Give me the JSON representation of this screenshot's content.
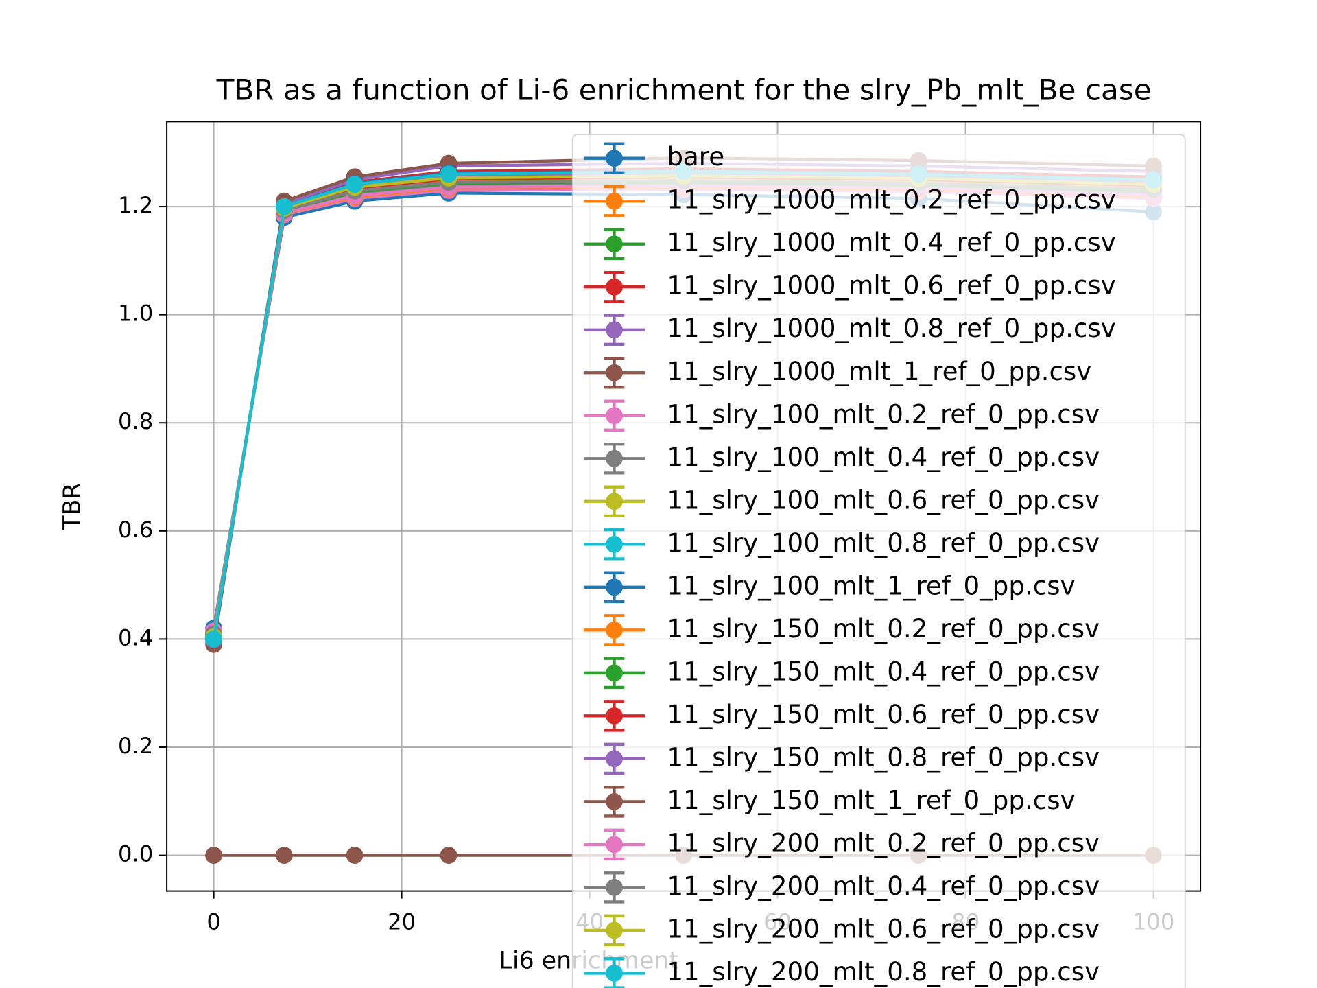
{
  "chart_data": {
    "type": "line",
    "title": "TBR as a function of Li-6 enrichment for the slry_Pb_mlt_Be case",
    "xlabel": "Li6 enrichment",
    "ylabel": "TBR",
    "x": [
      0,
      7.5,
      15,
      25,
      50,
      75,
      100
    ],
    "xlim": [
      -5,
      105
    ],
    "ylim": [
      -0.066,
      1.357
    ],
    "xticks": [
      0,
      20,
      40,
      60,
      80,
      100
    ],
    "yticks": [
      {
        "value": 0,
        "label": "0.0"
      },
      0.2,
      0.4,
      0.6,
      0.8,
      {
        "value": 1,
        "label": "1.0"
      },
      1.2
    ],
    "grid": true,
    "legend": "upper right",
    "series": [
      {
        "name": "bare",
        "color": "#1f77b4",
        "values": [
          0.42,
          1.18,
          1.21,
          1.225,
          1.222,
          1.215,
          1.19
        ]
      },
      {
        "name": "11_slry_1000_mlt_0.2_ref_0_pp.csv",
        "color": "#ff7f0e",
        "values": [
          0.41,
          1.19,
          1.225,
          1.24,
          1.245,
          1.24,
          1.23
        ]
      },
      {
        "name": "11_slry_1000_mlt_0.4_ref_0_pp.csv",
        "color": "#2ca02c",
        "values": [
          0.405,
          1.195,
          1.235,
          1.255,
          1.26,
          1.255,
          1.245
        ]
      },
      {
        "name": "11_slry_1000_mlt_0.6_ref_0_pp.csv",
        "color": "#d62728",
        "values": [
          0.4,
          1.2,
          1.245,
          1.265,
          1.27,
          1.265,
          1.255
        ]
      },
      {
        "name": "11_slry_1000_mlt_0.8_ref_0_pp.csv",
        "color": "#9467bd",
        "values": [
          0.395,
          1.205,
          1.25,
          1.275,
          1.28,
          1.275,
          1.265
        ]
      },
      {
        "name": "11_slry_1000_mlt_1_ref_0_pp.csv",
        "color": "#8c564b",
        "values": [
          0.39,
          1.21,
          1.255,
          1.28,
          1.29,
          1.285,
          1.275
        ]
      },
      {
        "name": "11_slry_100_mlt_0.2_ref_0_pp.csv",
        "color": "#e377c2",
        "values": [
          0.415,
          1.185,
          1.215,
          1.23,
          1.232,
          1.228,
          1.215
        ]
      },
      {
        "name": "11_slry_100_mlt_0.4_ref_0_pp.csv",
        "color": "#7f7f7f",
        "values": [
          0.41,
          1.19,
          1.225,
          1.24,
          1.243,
          1.238,
          1.226
        ]
      },
      {
        "name": "11_slry_100_mlt_0.6_ref_0_pp.csv",
        "color": "#bcbd22",
        "values": [
          0.405,
          1.195,
          1.232,
          1.248,
          1.252,
          1.247,
          1.236
        ]
      },
      {
        "name": "11_slry_100_mlt_0.8_ref_0_pp.csv",
        "color": "#17becf",
        "values": [
          0.4,
          1.198,
          1.238,
          1.256,
          1.26,
          1.255,
          1.244
        ]
      },
      {
        "name": "11_slry_100_mlt_1_ref_0_pp.csv",
        "color": "#1f77b4",
        "values": [
          0.405,
          1.2,
          1.243,
          1.262,
          1.266,
          1.261,
          1.25
        ]
      },
      {
        "name": "11_slry_150_mlt_0.2_ref_0_pp.csv",
        "color": "#ff7f0e",
        "values": [
          0.413,
          1.187,
          1.218,
          1.234,
          1.236,
          1.232,
          1.219
        ]
      },
      {
        "name": "11_slry_150_mlt_0.4_ref_0_pp.csv",
        "color": "#2ca02c",
        "values": [
          0.408,
          1.192,
          1.227,
          1.243,
          1.246,
          1.241,
          1.23
        ]
      },
      {
        "name": "11_slry_150_mlt_0.6_ref_0_pp.csv",
        "color": "#d62728",
        "values": [
          0.403,
          1.196,
          1.234,
          1.251,
          1.255,
          1.25,
          1.239
        ]
      },
      {
        "name": "11_slry_150_mlt_0.8_ref_0_pp.csv",
        "color": "#9467bd",
        "values": [
          0.399,
          1.2,
          1.24,
          1.258,
          1.263,
          1.258,
          1.247
        ]
      },
      {
        "name": "11_slry_150_mlt_1_ref_0_pp.csv",
        "color": "#8c564b",
        "values": [
          0,
          0,
          0,
          0,
          0,
          0,
          0
        ]
      },
      {
        "name": "11_slry_200_mlt_0.2_ref_0_pp.csv",
        "color": "#e377c2",
        "values": [
          0.414,
          1.188,
          1.22,
          1.236,
          1.238,
          1.234,
          1.221
        ]
      },
      {
        "name": "11_slry_200_mlt_0.4_ref_0_pp.csv",
        "color": "#7f7f7f",
        "values": [
          0.409,
          1.193,
          1.229,
          1.245,
          1.248,
          1.243,
          1.232
        ]
      },
      {
        "name": "11_slry_200_mlt_0.6_ref_0_pp.csv",
        "color": "#bcbd22",
        "values": [
          0.404,
          1.197,
          1.236,
          1.253,
          1.257,
          1.252,
          1.241
        ]
      },
      {
        "name": "11_slry_200_mlt_0.8_ref_0_pp.csv",
        "color": "#17becf",
        "values": [
          0.4,
          1.2,
          1.241,
          1.26,
          1.265,
          1.26,
          1.249
        ]
      }
    ]
  }
}
